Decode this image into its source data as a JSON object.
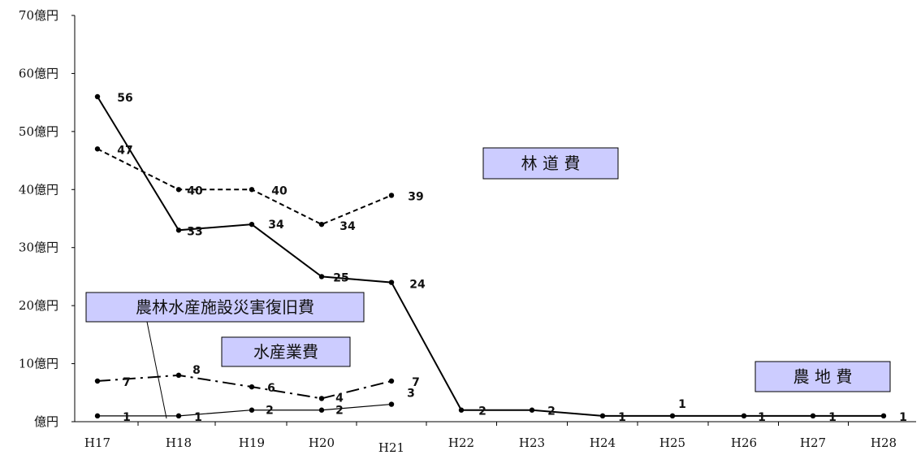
{
  "chart_data": {
    "type": "line",
    "title": "",
    "xlabel": "",
    "ylabel": "",
    "categories": [
      "H17",
      "H18",
      "H19",
      "H20",
      "H21",
      "H22",
      "H23",
      "H24",
      "H25",
      "H26",
      "H27",
      "H28"
    ],
    "yticks": [
      "億円",
      "10億円",
      "20億円",
      "30億円",
      "40億円",
      "50億円",
      "60億円",
      "70億円"
    ],
    "ylim": [
      0,
      70
    ],
    "grid": false,
    "series": [
      {
        "key": "noji",
        "values": [
          56,
          33,
          34,
          25,
          24,
          2,
          2,
          1,
          1,
          1,
          1,
          1
        ],
        "style": "solid",
        "width": 2
      },
      {
        "key": "rindo",
        "values": [
          47,
          40,
          40,
          34,
          39,
          null,
          null,
          null,
          null,
          null,
          null,
          null
        ],
        "style": "dashed",
        "width": 2
      },
      {
        "key": "suisan",
        "values": [
          7,
          8,
          6,
          4,
          7,
          null,
          null,
          null,
          null,
          null,
          null,
          null
        ],
        "style": "dashdot",
        "width": 2
      },
      {
        "key": "shisetsu",
        "values": [
          1,
          1,
          2,
          2,
          3,
          null,
          null,
          null,
          null,
          null,
          null,
          null
        ],
        "style": "thin",
        "width": 1.2
      }
    ],
    "annotations": [
      {
        "key": "rindo",
        "label": "林 道 費"
      },
      {
        "key": "shisetsu",
        "label": "農林水産施設災害復旧費"
      },
      {
        "key": "suisan",
        "label": "水産業費"
      },
      {
        "key": "noji",
        "label": "農 地 費"
      }
    ],
    "colors": {
      "line": "#000000",
      "box_fill": "#ccccff",
      "box_border": "#000000"
    }
  }
}
